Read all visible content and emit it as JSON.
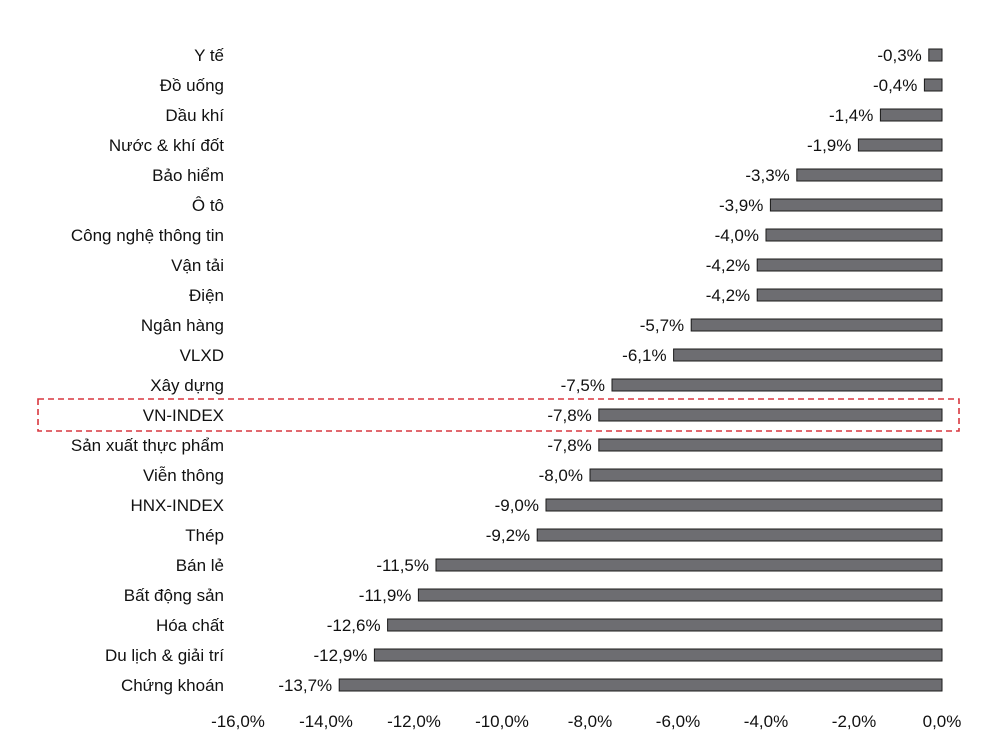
{
  "chart_data": {
    "type": "bar",
    "orientation": "horizontal",
    "categories": [
      "Y tế",
      "Đồ uống",
      "Dầu khí",
      "Nước & khí đốt",
      "Bảo hiểm",
      "Ô tô",
      "Công nghệ thông tin",
      "Vận tải",
      "Điện",
      "Ngân hàng",
      "VLXD",
      "Xây dựng",
      "VN-INDEX",
      "Sản xuất thực phẩm",
      "Viễn thông",
      "HNX-INDEX",
      "Thép",
      "Bán lẻ",
      "Bất động sản",
      "Hóa chất",
      "Du lịch & giải trí",
      "Chứng khoán"
    ],
    "values": [
      -0.3,
      -0.4,
      -1.4,
      -1.9,
      -3.3,
      -3.9,
      -4.0,
      -4.2,
      -4.2,
      -5.7,
      -6.1,
      -7.5,
      -7.8,
      -7.8,
      -8.0,
      -9.0,
      -9.2,
      -11.5,
      -11.9,
      -12.6,
      -12.9,
      -13.7
    ],
    "value_labels": [
      "-0,3%",
      "-0,4%",
      "-1,4%",
      "-1,9%",
      "-3,3%",
      "-3,9%",
      "-4,0%",
      "-4,2%",
      "-4,2%",
      "-5,7%",
      "-6,1%",
      "-7,5%",
      "-7,8%",
      "-7,8%",
      "-8,0%",
      "-9,0%",
      "-9,2%",
      "-11,5%",
      "-11,9%",
      "-12,6%",
      "-12,9%",
      "-13,7%"
    ],
    "xlim": [
      -16,
      0
    ],
    "xticks": [
      -16,
      -14,
      -12,
      -10,
      -8,
      -6,
      -4,
      -2,
      0
    ],
    "xtick_labels": [
      "-16,0%",
      "-14,0%",
      "-12,0%",
      "-10,0%",
      "-8,0%",
      "-6,0%",
      "-4,0%",
      "-2,0%",
      "0,0%"
    ],
    "highlighted_category": "VN-INDEX",
    "grid": false,
    "legend": "none",
    "title": "",
    "xlabel": "",
    "ylabel": "",
    "colors": {
      "bar_fill": "#6d6d71",
      "bar_stroke": "#1a1a1a",
      "highlight_box": "#d9363e",
      "text": "#111111"
    }
  }
}
